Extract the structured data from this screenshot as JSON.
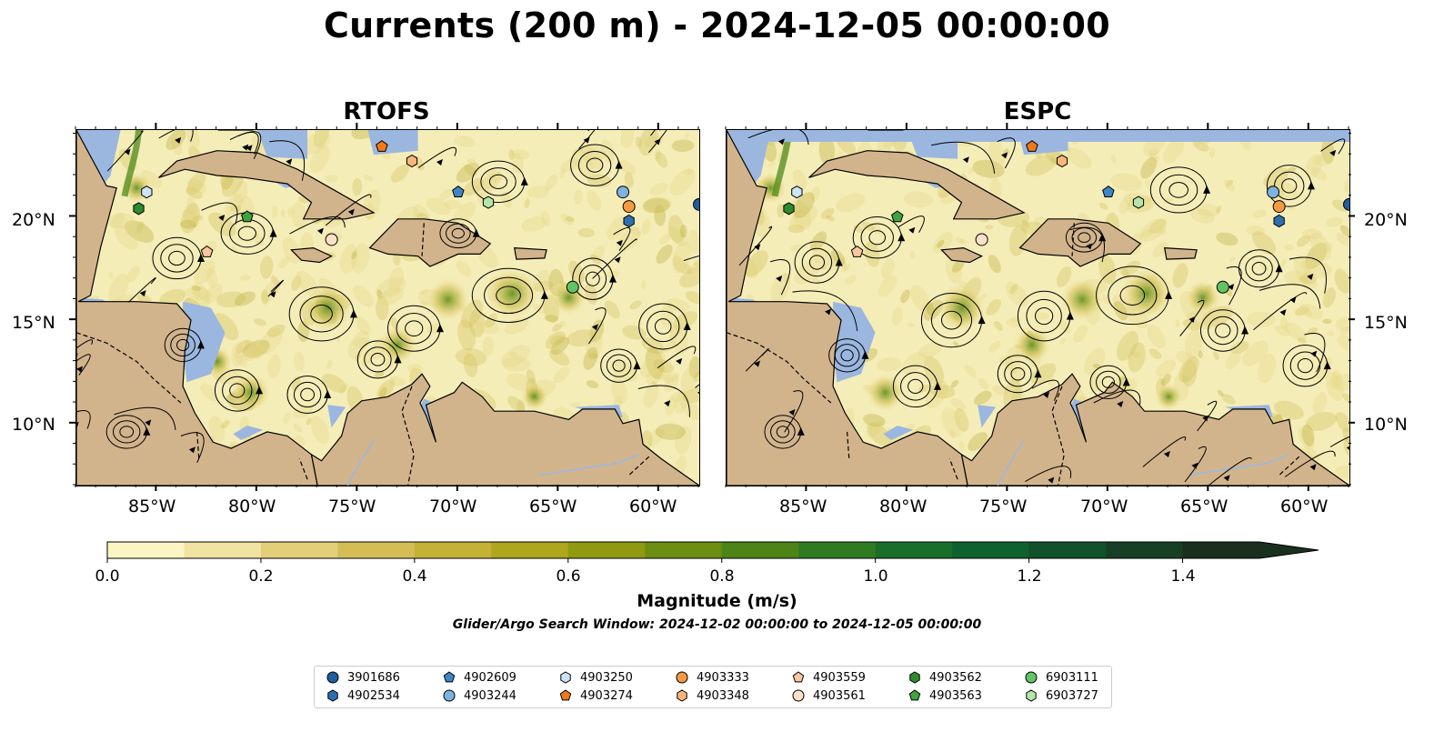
{
  "title": "Currents (200 m) - 2024-12-05 00:00:00",
  "panels": [
    {
      "title": "RTOFS"
    },
    {
      "title": "ESPC"
    }
  ],
  "axes": {
    "lon_ticks": [
      "85°W",
      "80°W",
      "75°W",
      "70°W",
      "65°W",
      "60°W"
    ],
    "lat_ticks": [
      "20°N",
      "15°N",
      "10°N"
    ]
  },
  "colorbar": {
    "label": "Magnitude (m/s)",
    "tick_labels": [
      "0.0",
      "0.2",
      "0.4",
      "0.6",
      "0.8",
      "1.0",
      "1.2",
      "1.4"
    ],
    "range": [
      0,
      1.5
    ],
    "extend": "max",
    "colors": [
      "#fbf5c3",
      "#f1e3a1",
      "#e3cf7a",
      "#d5bd56",
      "#c3b236",
      "#aea61c",
      "#8f9a10",
      "#6c8e12",
      "#4c8418",
      "#307a22",
      "#1a6e2a",
      "#0f622d",
      "#11522b",
      "#173f26",
      "#1a2f1e"
    ]
  },
  "search_window": "Glider/Argo Search Window: 2024-12-02 00:00:00 to 2024-12-05 00:00:00",
  "map_colors": {
    "land": "#d2b48c",
    "ocean_shallow": "#9bb7e0",
    "current_low": "#f5edb8",
    "current_mid": "#d4c35a",
    "current_high": "#5e8e1a"
  },
  "legend": [
    {
      "id": "3901686",
      "marker": "circle",
      "color": "#1f5f9f"
    },
    {
      "id": "4902534",
      "marker": "hexagon",
      "color": "#2f6fb0"
    },
    {
      "id": "4902609",
      "marker": "pentagon",
      "color": "#3f86c8"
    },
    {
      "id": "4903244",
      "marker": "circle",
      "color": "#7eb3e0"
    },
    {
      "id": "4903250",
      "marker": "hexagon",
      "color": "#cde4f5"
    },
    {
      "id": "4903274",
      "marker": "pentagon",
      "color": "#f07a18"
    },
    {
      "id": "4903333",
      "marker": "circle",
      "color": "#f59a42"
    },
    {
      "id": "4903348",
      "marker": "hexagon",
      "color": "#f8b67a"
    },
    {
      "id": "4903559",
      "marker": "pentagon",
      "color": "#f9c6a0"
    },
    {
      "id": "4903561",
      "marker": "circle",
      "color": "#fde0c8"
    },
    {
      "id": "4903562",
      "marker": "hexagon",
      "color": "#2e8b2e"
    },
    {
      "id": "4903563",
      "marker": "pentagon",
      "color": "#3da53d"
    },
    {
      "id": "6903111",
      "marker": "circle",
      "color": "#62c462"
    },
    {
      "id": "6903727",
      "marker": "hexagon",
      "color": "#b4e6a8"
    }
  ],
  "floats_on_map": [
    {
      "id": "3901686",
      "lon": -58.0,
      "lat": 20.6
    },
    {
      "id": "4902534",
      "lon": -61.5,
      "lat": 19.8
    },
    {
      "id": "4902609",
      "lon": -70.0,
      "lat": 21.2
    },
    {
      "id": "4903244",
      "lon": -61.8,
      "lat": 21.2
    },
    {
      "id": "4903250",
      "lon": -85.5,
      "lat": 21.2
    },
    {
      "id": "4903274",
      "lon": -73.8,
      "lat": 23.4
    },
    {
      "id": "4903333",
      "lon": -61.5,
      "lat": 20.5
    },
    {
      "id": "4903348",
      "lon": -72.3,
      "lat": 22.7
    },
    {
      "id": "4903559",
      "lon": -82.5,
      "lat": 18.3
    },
    {
      "id": "4903561",
      "lon": -76.3,
      "lat": 18.9
    },
    {
      "id": "4903562",
      "lon": -85.9,
      "lat": 20.4
    },
    {
      "id": "4903563",
      "lon": -80.5,
      "lat": 20.0
    },
    {
      "id": "6903111",
      "lon": -64.3,
      "lat": 16.6
    },
    {
      "id": "6903727",
      "lon": -68.5,
      "lat": 20.7
    }
  ]
}
